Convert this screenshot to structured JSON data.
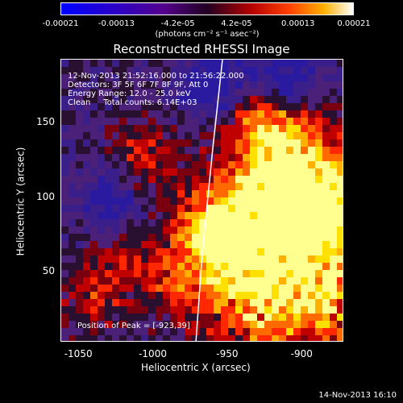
{
  "colorbar": {
    "ticks": [
      {
        "label": "-0.00021",
        "value": -0.00021
      },
      {
        "label": "-0.00013",
        "value": -0.00013
      },
      {
        "label": "-4.2e-05",
        "value": -4.2e-05
      },
      {
        "label": "4.2e-05",
        "value": 4.2e-05
      },
      {
        "label": "0.00013",
        "value": 0.00013
      },
      {
        "label": "0.00021",
        "value": 0.00021
      }
    ],
    "unit": "(photons cm⁻² s⁻¹ asec⁻²)"
  },
  "title": "Reconstructed RHESSI Image",
  "info": {
    "time_range": "12-Nov-2013 21:52:16.000 to 21:56:22.000",
    "detectors": "Detectors: 3F 5F 6F 7F 8F 9F, Att 0",
    "energy": "Energy Range: 12.0 - 25.0 keV",
    "method": "Clean     Total counts: 6.14E+03",
    "peak": "Position of Peak = [-923,39]"
  },
  "axes": {
    "xlabel": "Heliocentric X (arcsec)",
    "ylabel": "Heliocentric Y (arcsec)",
    "xticks": [
      {
        "label": "-1050",
        "value": -1050
      },
      {
        "label": "-1000",
        "value": -1000
      },
      {
        "label": "-950",
        "value": -950
      },
      {
        "label": "-900",
        "value": -900
      }
    ],
    "yticks": [
      {
        "label": "50",
        "value": 50
      },
      {
        "label": "100",
        "value": 100
      },
      {
        "label": "150",
        "value": 150
      }
    ],
    "xlim": [
      -1062,
      -872
    ],
    "ylim": [
      3,
      193
    ]
  },
  "footer": {
    "timestamp": "14-Nov-2013 16:10"
  }
}
